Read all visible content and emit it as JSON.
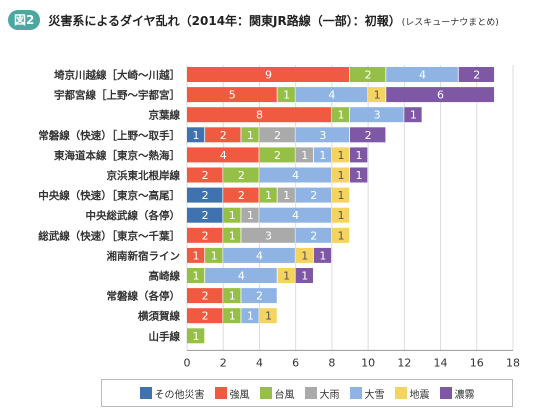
{
  "header": {
    "badge": "図2",
    "title": "災害系によるダイヤ乱れ（2014年：関東JR路線（一部）：初報）",
    "subtitle": "(レスキューナウまとめ)"
  },
  "colors": {
    "その他災害": "#3f72af",
    "強風": "#f05a40",
    "台風": "#96bf48",
    "大雨": "#aaaaaa",
    "大雪": "#8fb4e3",
    "地震": "#f4d35e",
    "濃霧": "#7e57a5"
  },
  "chart_data": {
    "type": "bar",
    "orientation": "horizontal",
    "stacked": true,
    "categories": [
      "埼京川越線［大崎～川越］",
      "宇都宮線［上野～宇都宮］",
      "京葉線",
      "常磐線（快速）［上野～取手］",
      "東海道本線［東京～熱海］",
      "京浜東北根岸線",
      "中央線（快速）［東京～高尾］",
      "中央総武線（各停）",
      "総武線（快速）［東京～千葉］",
      "湘南新宿ライン",
      "高崎線",
      "常磐線（各停）",
      "横須賀線",
      "山手線"
    ],
    "series": [
      {
        "name": "その他災害",
        "values": [
          0,
          0,
          0,
          1,
          0,
          0,
          2,
          2,
          0,
          0,
          0,
          0,
          0,
          0
        ]
      },
      {
        "name": "強風",
        "values": [
          9,
          5,
          8,
          2,
          4,
          2,
          2,
          0,
          2,
          1,
          0,
          2,
          2,
          0
        ]
      },
      {
        "name": "台風",
        "values": [
          2,
          1,
          1,
          1,
          2,
          2,
          1,
          1,
          1,
          1,
          1,
          1,
          1,
          1
        ]
      },
      {
        "name": "大雨",
        "values": [
          0,
          0,
          0,
          2,
          1,
          0,
          1,
          1,
          3,
          0,
          0,
          0,
          0,
          0
        ]
      },
      {
        "name": "大雪",
        "values": [
          4,
          4,
          3,
          3,
          1,
          4,
          2,
          4,
          2,
          4,
          4,
          2,
          1,
          0
        ]
      },
      {
        "name": "地震",
        "values": [
          0,
          1,
          0,
          0,
          1,
          1,
          1,
          1,
          1,
          1,
          1,
          0,
          1,
          0
        ]
      },
      {
        "name": "濃霧",
        "values": [
          2,
          6,
          1,
          2,
          1,
          1,
          0,
          0,
          0,
          1,
          1,
          0,
          0,
          0
        ]
      }
    ],
    "xlim": [
      0,
      18
    ],
    "xticks": [
      0,
      2,
      4,
      6,
      8,
      10,
      12,
      14,
      16,
      18
    ],
    "grid": true,
    "legend_position": "bottom"
  }
}
